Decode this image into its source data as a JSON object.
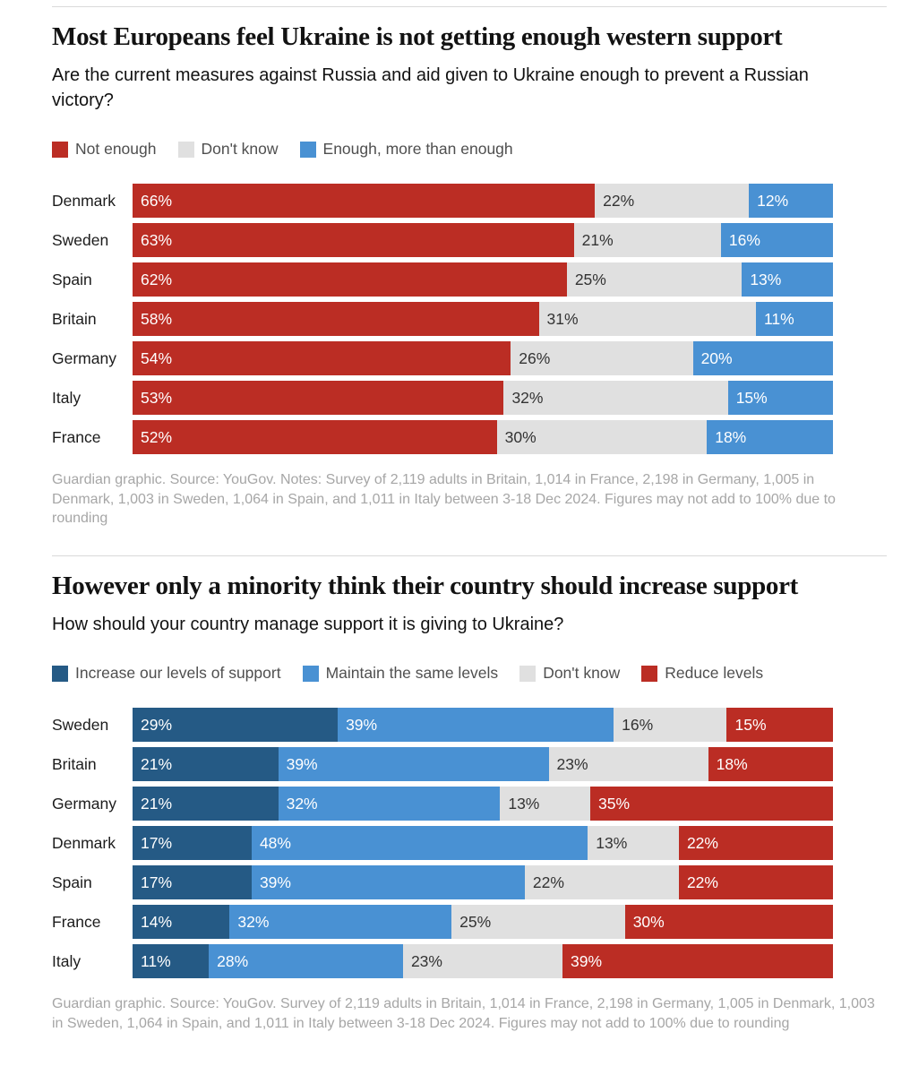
{
  "chart_data": [
    {
      "type": "bar",
      "stacked": true,
      "orientation": "horizontal",
      "title": "Most Europeans feel Ukraine is not getting enough western support",
      "subtitle": "Are the current measures against Russia and aid given to Ukraine enough to prevent a Russian victory?",
      "legend_position": "top",
      "grid": false,
      "xlim": [
        0,
        100
      ],
      "value_suffix": "%",
      "categories": [
        "Denmark",
        "Sweden",
        "Spain",
        "Britain",
        "Germany",
        "Italy",
        "France"
      ],
      "series": [
        {
          "name": "Not enough",
          "color": "#bb2d24",
          "text_color": "#ffffff",
          "values": [
            66,
            63,
            62,
            58,
            54,
            53,
            52
          ]
        },
        {
          "name": "Don't know",
          "color": "#e0e0e0",
          "text_color": "#333333",
          "values": [
            22,
            21,
            25,
            31,
            26,
            32,
            30
          ]
        },
        {
          "name": "Enough, more than enough",
          "color": "#4991d3",
          "text_color": "#ffffff",
          "values": [
            12,
            16,
            13,
            11,
            20,
            15,
            18
          ]
        }
      ],
      "footnote": "Guardian graphic. Source: YouGov. Notes: Survey of 2,119 adults in Britain, 1,014 in France, 2,198 in Germany, 1,005 in Denmark, 1,003 in Sweden, 1,064 in Spain, and 1,011 in Italy between 3-18 Dec 2024. Figures may not add to 100% due to rounding"
    },
    {
      "type": "bar",
      "stacked": true,
      "orientation": "horizontal",
      "title": "However only a minority think their country should increase support",
      "subtitle": "How should your country manage support it is giving to Ukraine?",
      "legend_position": "top",
      "grid": false,
      "xlim": [
        0,
        100
      ],
      "value_suffix": "%",
      "categories": [
        "Sweden",
        "Britain",
        "Germany",
        "Denmark",
        "Spain",
        "France",
        "Italy"
      ],
      "series": [
        {
          "name": "Increase our levels of support",
          "color": "#255a85",
          "text_color": "#ffffff",
          "values": [
            29,
            21,
            21,
            17,
            17,
            14,
            11
          ]
        },
        {
          "name": "Maintain the same levels",
          "color": "#4991d3",
          "text_color": "#ffffff",
          "values": [
            39,
            39,
            32,
            48,
            39,
            32,
            28
          ]
        },
        {
          "name": "Don't know",
          "color": "#e0e0e0",
          "text_color": "#333333",
          "values": [
            16,
            23,
            13,
            13,
            22,
            25,
            23
          ]
        },
        {
          "name": "Reduce levels",
          "color": "#bb2d24",
          "text_color": "#ffffff",
          "values": [
            15,
            18,
            35,
            22,
            22,
            30,
            39
          ]
        }
      ],
      "footnote": "Guardian graphic. Source: YouGov. Survey of 2,119 adults in Britain, 1,014 in France, 2,198 in Germany, 1,005 in Denmark, 1,003 in Sweden, 1,064 in Spain, and 1,011 in Italy between 3-18 Dec 2024. Figures may not add to 100% due to rounding"
    }
  ]
}
